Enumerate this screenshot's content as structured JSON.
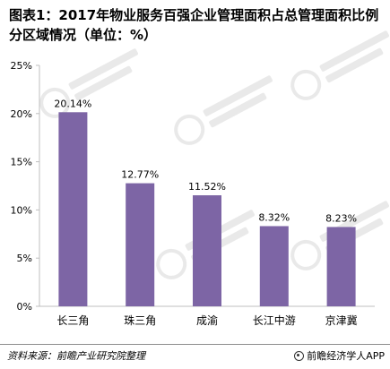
{
  "title": "图表1：2017年物业服务百强企业管理面积占总管理面积比例分区域情况（单位：%）",
  "source": "资料来源：前瞻产业研究院整理",
  "brand": "前瞻经济学人APP",
  "bar_color": "#7d65a5",
  "axis_color": "#bfbfbf",
  "chart_data": {
    "type": "bar",
    "categories": [
      "长三角",
      "珠三角",
      "成渝",
      "长江中游",
      "京津冀"
    ],
    "values": [
      20.14,
      12.77,
      11.52,
      8.32,
      8.23
    ],
    "value_labels": [
      "20.14%",
      "12.77%",
      "11.52%",
      "8.32%",
      "8.23%"
    ],
    "y_ticks": [
      "0%",
      "5%",
      "10%",
      "15%",
      "20%",
      "25%"
    ],
    "ylim": [
      0,
      25
    ],
    "grid": false,
    "legend": "none"
  }
}
